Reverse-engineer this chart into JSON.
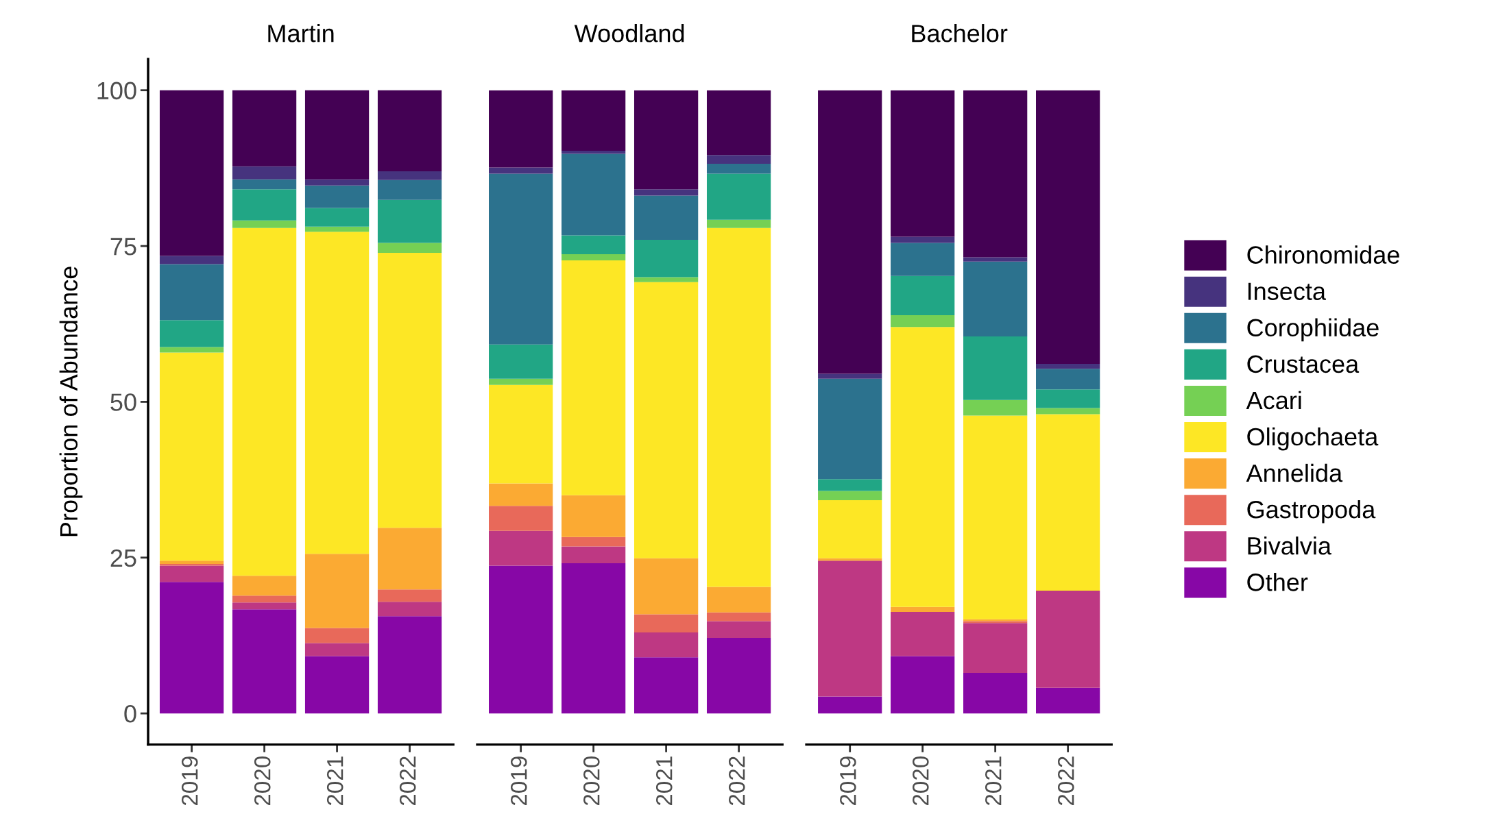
{
  "chart_data": [
    {
      "type": "bar",
      "stacked": true,
      "title": "Martin",
      "ylabel": "Proportion of Abundance",
      "categories": [
        "2019",
        "2020",
        "2021",
        "2022"
      ],
      "ylim": [
        -5,
        105
      ],
      "yticks": [
        0,
        25,
        50,
        75,
        100
      ],
      "grid": false,
      "legend": "right",
      "series": [
        {
          "name": "Other",
          "color": "#8707a6",
          "values": [
            21.1,
            16.7,
            9.2,
            15.6
          ]
        },
        {
          "name": "Bivalvia",
          "color": "#be3883",
          "values": [
            2.6,
            1.1,
            2.1,
            2.3
          ]
        },
        {
          "name": "Gastropoda",
          "color": "#e8695a",
          "values": [
            0.3,
            1.1,
            2.4,
            2.0
          ]
        },
        {
          "name": "Annelida",
          "color": "#fbaa33",
          "values": [
            0.5,
            3.2,
            11.9,
            9.9
          ]
        },
        {
          "name": "Oligochaeta",
          "color": "#fde725",
          "values": [
            33.4,
            55.8,
            51.7,
            44.1
          ]
        },
        {
          "name": "Acari",
          "color": "#75d054",
          "values": [
            0.9,
            1.2,
            0.8,
            1.6
          ]
        },
        {
          "name": "Crustacea",
          "color": "#21a685",
          "values": [
            4.3,
            5.0,
            3.0,
            6.9
          ]
        },
        {
          "name": "Corophiidae",
          "color": "#2c728e",
          "values": [
            9.0,
            1.6,
            3.6,
            3.2
          ]
        },
        {
          "name": "Insecta",
          "color": "#46337e",
          "values": [
            1.3,
            2.1,
            1.0,
            1.4
          ]
        },
        {
          "name": "Chironomidae",
          "color": "#440154",
          "values": [
            26.6,
            12.2,
            14.3,
            13.0
          ]
        }
      ]
    },
    {
      "type": "bar",
      "stacked": true,
      "title": "Woodland",
      "categories": [
        "2019",
        "2020",
        "2021",
        "2022"
      ],
      "ylim": [
        -5,
        100
      ],
      "yticks": [
        0,
        25,
        50,
        75,
        100
      ],
      "grid": false,
      "tick_labels": "x",
      "series": [
        {
          "color": "#8707a6",
          "values": [
            23.7,
            24.1,
            9.0,
            12.1
          ]
        },
        {
          "color": "#be3883",
          "values": [
            5.6,
            2.7,
            4.0,
            2.7
          ]
        },
        {
          "color": "#e8695a",
          "values": [
            4.0,
            1.5,
            2.9,
            1.4
          ]
        },
        {
          "color": "#fbaa33",
          "values": [
            3.6,
            6.7,
            9.0,
            4.1
          ]
        },
        {
          "color": "#fde725",
          "values": [
            15.8,
            37.7,
            44.3,
            57.6
          ]
        },
        {
          "color": "#75d054",
          "values": [
            1.0,
            1.0,
            0.8,
            1.3
          ]
        },
        {
          "color": "#21a685",
          "values": [
            5.5,
            3.0,
            6.0,
            7.4
          ]
        },
        {
          "color": "#2c728e",
          "values": [
            27.4,
            13.1,
            7.1,
            1.6
          ]
        },
        {
          "color": "#46337e",
          "values": [
            1.0,
            0.5,
            1.0,
            1.4
          ]
        },
        {
          "color": "#440154",
          "values": [
            12.4,
            9.7,
            15.9,
            10.4
          ]
        }
      ]
    },
    {
      "type": "bar",
      "stacked": true,
      "title": "Bachelor",
      "categories": [
        "2019",
        "2020",
        "2021",
        "2022"
      ],
      "ylim": [
        -5,
        100
      ],
      "yticks": [
        0,
        25,
        50,
        75,
        100
      ],
      "grid": false,
      "tick_labels": "x",
      "series": [
        {
          "color": "#8707a6",
          "values": [
            2.7,
            9.2,
            6.5,
            4.1
          ]
        },
        {
          "color": "#be3883",
          "values": [
            21.8,
            7.1,
            8.0,
            15.6
          ]
        },
        {
          "color": "#e8695a",
          "values": [
            0,
            0,
            0.3,
            0
          ]
        },
        {
          "color": "#fbaa33",
          "values": [
            0.4,
            0.8,
            0.3,
            0
          ]
        },
        {
          "color": "#fde725",
          "values": [
            9.3,
            44.9,
            32.7,
            28.3
          ]
        },
        {
          "color": "#75d054",
          "values": [
            1.5,
            1.9,
            2.5,
            1.0
          ]
        },
        {
          "color": "#21a685",
          "values": [
            1.9,
            6.3,
            10.2,
            3.0
          ]
        },
        {
          "color": "#2c728e",
          "values": [
            16.1,
            5.3,
            12.0,
            3.3
          ]
        },
        {
          "color": "#46337e",
          "values": [
            0.8,
            1.0,
            0.7,
            0.8
          ]
        },
        {
          "color": "#440154",
          "values": [
            45.5,
            23.5,
            26.8,
            43.9
          ]
        }
      ]
    }
  ]
}
